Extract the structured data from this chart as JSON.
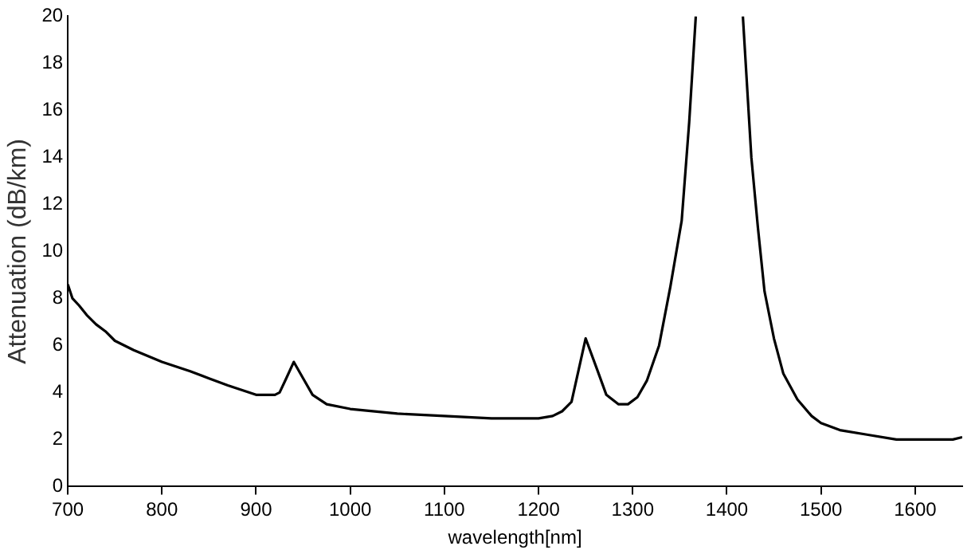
{
  "chart_data": {
    "type": "line",
    "xlabel": "wavelength[nm]",
    "ylabel": "Attenuation (dB/km)",
    "x": [
      700,
      705,
      712,
      720,
      730,
      740,
      750,
      770,
      800,
      830,
      850,
      870,
      900,
      920,
      925,
      932,
      940,
      950,
      960,
      975,
      1000,
      1050,
      1100,
      1150,
      1200,
      1215,
      1225,
      1235,
      1250,
      1262,
      1272,
      1285,
      1295,
      1305,
      1315,
      1328,
      1340,
      1352,
      1360,
      1367,
      1392,
      1417,
      1420,
      1426,
      1433,
      1440,
      1450,
      1460,
      1475,
      1490,
      1500,
      1520,
      1550,
      1580,
      1600,
      1640,
      1650
    ],
    "series": [
      {
        "color": "#000000",
        "values": [
          8.6,
          8.0,
          7.7,
          7.3,
          6.9,
          6.6,
          6.2,
          5.8,
          5.3,
          4.9,
          4.6,
          4.3,
          3.9,
          3.9,
          4.0,
          4.6,
          5.3,
          4.6,
          3.9,
          3.5,
          3.3,
          3.1,
          3.0,
          2.9,
          2.9,
          3.0,
          3.2,
          3.6,
          6.3,
          5.0,
          3.9,
          3.5,
          3.5,
          3.8,
          4.5,
          6.0,
          8.5,
          11.3,
          15.5,
          20,
          null,
          20,
          18,
          14,
          11,
          8.3,
          6.3,
          4.8,
          3.7,
          3.0,
          2.7,
          2.4,
          2.2,
          2.0,
          2.0,
          2.0,
          2.1
        ]
      }
    ],
    "xlim": [
      700,
      1650
    ],
    "xticks": [
      700,
      800,
      900,
      1000,
      1100,
      1200,
      1300,
      1400,
      1500,
      1600
    ],
    "ylim": [
      0,
      20
    ],
    "yticks": [
      0,
      2,
      4,
      6,
      8,
      10,
      12,
      14,
      16,
      18,
      20
    ],
    "grid": false,
    "legend": false,
    "marker": "none",
    "line_style": "solid"
  }
}
